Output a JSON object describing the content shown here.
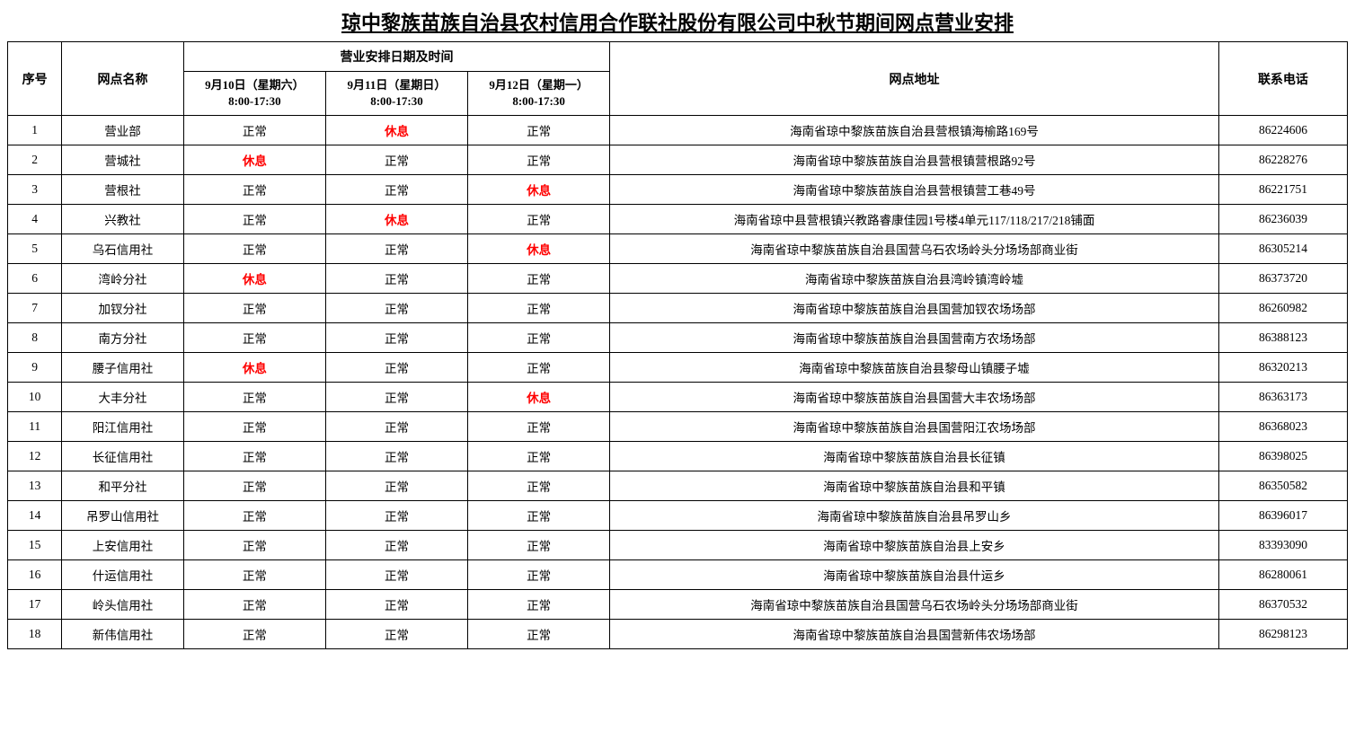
{
  "title": "琼中黎族苗族自治县农村信用合作联社股份有限公司中秋节期间网点营业安排",
  "headers": {
    "seq": "序号",
    "name": "网点名称",
    "schedule_group": "营业安排日期及时间",
    "date1_line1": "9月10日（星期六）",
    "date1_line2": "8:00-17:30",
    "date2_line1": "9月11日（星期日）",
    "date2_line2": "8:00-17:30",
    "date3_line1": "9月12日（星期一）",
    "date3_line2": "8:00-17:30",
    "address": "网点地址",
    "phone": "联系电话"
  },
  "status": {
    "normal": "正常",
    "rest": "休息"
  },
  "rows": [
    {
      "seq": "1",
      "name": "营业部",
      "d1": "正常",
      "d2": "休息",
      "d3": "正常",
      "addr": "海南省琼中黎族苗族自治县营根镇海榆路169号",
      "phone": "86224606"
    },
    {
      "seq": "2",
      "name": "营城社",
      "d1": "休息",
      "d2": "正常",
      "d3": "正常",
      "addr": "海南省琼中黎族苗族自治县营根镇营根路92号",
      "phone": "86228276"
    },
    {
      "seq": "3",
      "name": "营根社",
      "d1": "正常",
      "d2": "正常",
      "d3": "休息",
      "addr": "海南省琼中黎族苗族自治县营根镇营工巷49号",
      "phone": "86221751"
    },
    {
      "seq": "4",
      "name": "兴教社",
      "d1": "正常",
      "d2": "休息",
      "d3": "正常",
      "addr": "海南省琼中县营根镇兴教路睿康佳园1号楼4单元117/118/217/218铺面",
      "phone": "86236039"
    },
    {
      "seq": "5",
      "name": "乌石信用社",
      "d1": "正常",
      "d2": "正常",
      "d3": "休息",
      "addr": "海南省琼中黎族苗族自治县国营乌石农场岭头分场场部商业街",
      "phone": "86305214"
    },
    {
      "seq": "6",
      "name": "湾岭分社",
      "d1": "休息",
      "d2": "正常",
      "d3": "正常",
      "addr": "海南省琼中黎族苗族自治县湾岭镇湾岭墟",
      "phone": "86373720"
    },
    {
      "seq": "7",
      "name": "加钗分社",
      "d1": "正常",
      "d2": "正常",
      "d3": "正常",
      "addr": "海南省琼中黎族苗族自治县国营加钗农场场部",
      "phone": "86260982"
    },
    {
      "seq": "8",
      "name": "南方分社",
      "d1": "正常",
      "ontwt": "",
      "d2": "正常",
      "d3": "正常",
      "addr": "海南省琼中黎族苗族自治县国营南方农场场部",
      "phone": "86388123"
    },
    {
      "seq": "9",
      "name": "腰子信用社",
      "d1": "休息",
      "d2": "正常",
      "d3": "正常",
      "addr": "海南省琼中黎族苗族自治县黎母山镇腰子墟",
      "phone": "86320213"
    },
    {
      "seq": "10",
      "name": "大丰分社",
      "d1": "正常",
      "d2": "正常",
      "d3": "休息",
      "addr": "海南省琼中黎族苗族自治县国营大丰农场场部",
      "phone": "86363173"
    },
    {
      "seq": "11",
      "name": "阳江信用社",
      "d1": "正常",
      "d2": "正常",
      "d3": "正常",
      "addr": "海南省琼中黎族苗族自治县国营阳江农场场部",
      "phone": "86368023"
    },
    {
      "seq": "12",
      "name": "长征信用社",
      "d1": "正常",
      "d2": "正常",
      "d3": "正常",
      "addr": "海南省琼中黎族苗族自治县长征镇",
      "phone": "86398025"
    },
    {
      "seq": "13",
      "name": "和平分社",
      "d1": "正常",
      "d2": "正常",
      "d3": "正常",
      "addr": "海南省琼中黎族苗族自治县和平镇",
      "phone": "86350582"
    },
    {
      "seq": "14",
      "name": "吊罗山信用社",
      "d1": "正常",
      "d2": "正常",
      "d3": "正常",
      "addr": "海南省琼中黎族苗族自治县吊罗山乡",
      "phone": "86396017"
    },
    {
      "seq": "15",
      "name": "上安信用社",
      "d1": "正常",
      "d2": "正常",
      "d3": "正常",
      "addr": "海南省琼中黎族苗族自治县上安乡",
      "phone": "83393090"
    },
    {
      "seq": "16",
      "name": "什运信用社",
      "d1": "正常",
      "d2": "正常",
      "d3": "正常",
      "addr": "海南省琼中黎族苗族自治县什运乡",
      "phone": "86280061"
    },
    {
      "seq": "17",
      "name": "岭头信用社",
      "d1": "正常",
      "d2": "正常",
      "d3": "正常",
      "addr": "海南省琼中黎族苗族自治县国营乌石农场岭头分场场部商业街",
      "phone": "86370532"
    },
    {
      "seq": "18",
      "name": "新伟信用社",
      "d1": "正常",
      "d2": "正常",
      "d3": "正常",
      "addr": "海南省琼中黎族苗族自治县国营新伟农场场部",
      "phone": "86298123"
    }
  ],
  "style": {
    "rest_color": "#ff0000",
    "border_color": "#000000",
    "background": "#ffffff",
    "title_fontsize": 22,
    "body_fontsize": 13.5
  }
}
